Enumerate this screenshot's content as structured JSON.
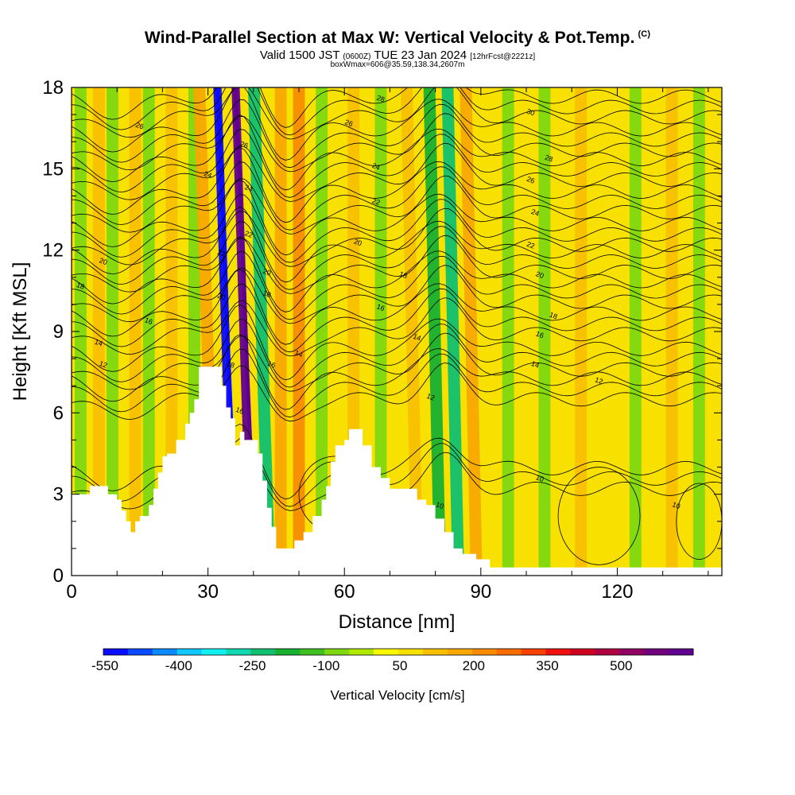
{
  "header": {
    "title": "Wind-Parallel Section at Max W: Vertical Velocity & Pot.Temp.",
    "copyright": "(C)",
    "valid_prefix": "Valid 1500 JST",
    "valid_utc": "(0600Z)",
    "valid_date": "TUE 23 Jan 2024",
    "forecast_info": "[12hrFcst@2221z]",
    "box_info": "boxWmax=606@35.59,138.34,2607m"
  },
  "chart_data": {
    "type": "heatmap",
    "xlabel": "Distance [nm]",
    "ylabel": "Height [Kft MSL]",
    "xlim": [
      0,
      143
    ],
    "ylim": [
      0,
      18
    ],
    "x_ticks": [
      0,
      30,
      60,
      90,
      120
    ],
    "y_ticks": [
      0,
      3,
      6,
      9,
      12,
      15,
      18
    ],
    "colorbar": {
      "label": "Vertical Velocity [cm/s]",
      "tick_labels": [
        "-550",
        "-400",
        "-250",
        "-100",
        "50",
        "200",
        "350",
        "500"
      ],
      "colors": [
        "#0a0aff",
        "#0a4aff",
        "#0a8aff",
        "#10c8ff",
        "#10f0f0",
        "#10d8b0",
        "#10c070",
        "#18b030",
        "#40c020",
        "#80d810",
        "#b0e800",
        "#f8f800",
        "#f8e000",
        "#f8c000",
        "#f8a800",
        "#f88c00",
        "#f86c00",
        "#f84000",
        "#f01010",
        "#d00020",
        "#b00040",
        "#900060",
        "#700080",
        "#600090"
      ]
    },
    "background_velocity": 50,
    "velocity_bands": [
      {
        "x": 2,
        "v": -80
      },
      {
        "x": 6,
        "v": 100
      },
      {
        "x": 9,
        "v": -100
      },
      {
        "x": 14,
        "v": 130
      },
      {
        "x": 17,
        "v": -80
      },
      {
        "x": 22,
        "v": 130
      },
      {
        "x": 27,
        "v": -100
      },
      {
        "x": 30,
        "v": 170
      },
      {
        "x": 34,
        "v": -520
      },
      {
        "x": 38,
        "v": 600
      },
      {
        "x": 42,
        "v": -220
      },
      {
        "x": 46,
        "v": 150
      },
      {
        "x": 50,
        "v": 200
      },
      {
        "x": 55,
        "v": -60
      },
      {
        "x": 62,
        "v": 110
      },
      {
        "x": 68,
        "v": -60
      },
      {
        "x": 75,
        "v": 120
      },
      {
        "x": 80,
        "v": -180
      },
      {
        "x": 84,
        "v": -220
      },
      {
        "x": 88,
        "v": 150
      },
      {
        "x": 96,
        "v": -90
      },
      {
        "x": 104,
        "v": -60
      },
      {
        "x": 112,
        "v": 100
      },
      {
        "x": 124,
        "v": -60
      },
      {
        "x": 132,
        "v": 120
      },
      {
        "x": 138,
        "v": -80
      }
    ],
    "terrain": [
      {
        "x": 0,
        "z": 3.0
      },
      {
        "x": 3,
        "z": 3.0
      },
      {
        "x": 4,
        "z": 3.3
      },
      {
        "x": 6,
        "z": 3.3
      },
      {
        "x": 8,
        "z": 3.0
      },
      {
        "x": 10,
        "z": 2.8
      },
      {
        "x": 11,
        "z": 2.4
      },
      {
        "x": 12,
        "z": 2.0
      },
      {
        "x": 13,
        "z": 1.6
      },
      {
        "x": 14,
        "z": 2.0
      },
      {
        "x": 15,
        "z": 2.2
      },
      {
        "x": 17,
        "z": 2.6
      },
      {
        "x": 18,
        "z": 3.2
      },
      {
        "x": 19,
        "z": 3.8
      },
      {
        "x": 20,
        "z": 4.4
      },
      {
        "x": 21,
        "z": 4.5
      },
      {
        "x": 23,
        "z": 5.0
      },
      {
        "x": 25,
        "z": 5.6
      },
      {
        "x": 26,
        "z": 6.0
      },
      {
        "x": 27,
        "z": 6.5
      },
      {
        "x": 28,
        "z": 7.7
      },
      {
        "x": 32,
        "z": 7.7
      },
      {
        "x": 33,
        "z": 7.0
      },
      {
        "x": 34,
        "z": 6.2
      },
      {
        "x": 35,
        "z": 5.8
      },
      {
        "x": 36,
        "z": 4.8
      },
      {
        "x": 37,
        "z": 5.3
      },
      {
        "x": 38,
        "z": 5.0
      },
      {
        "x": 40,
        "z": 5.0
      },
      {
        "x": 41,
        "z": 4.5
      },
      {
        "x": 42,
        "z": 3.5
      },
      {
        "x": 43,
        "z": 2.5
      },
      {
        "x": 44,
        "z": 1.8
      },
      {
        "x": 45,
        "z": 1.0
      },
      {
        "x": 48,
        "z": 1.0
      },
      {
        "x": 49,
        "z": 1.3
      },
      {
        "x": 51,
        "z": 1.6
      },
      {
        "x": 53,
        "z": 2.2
      },
      {
        "x": 55,
        "z": 2.8
      },
      {
        "x": 56,
        "z": 3.3
      },
      {
        "x": 57,
        "z": 4.2
      },
      {
        "x": 58,
        "z": 4.8
      },
      {
        "x": 60,
        "z": 5.0
      },
      {
        "x": 61,
        "z": 5.4
      },
      {
        "x": 63,
        "z": 5.4
      },
      {
        "x": 64,
        "z": 4.8
      },
      {
        "x": 66,
        "z": 4.0
      },
      {
        "x": 68,
        "z": 3.6
      },
      {
        "x": 70,
        "z": 3.2
      },
      {
        "x": 74,
        "z": 3.2
      },
      {
        "x": 76,
        "z": 2.8
      },
      {
        "x": 78,
        "z": 2.6
      },
      {
        "x": 80,
        "z": 2.1
      },
      {
        "x": 82,
        "z": 1.6
      },
      {
        "x": 84,
        "z": 1.0
      },
      {
        "x": 86,
        "z": 0.8
      },
      {
        "x": 89,
        "z": 0.6
      },
      {
        "x": 92,
        "z": 0.3
      },
      {
        "x": 143,
        "z": 0.3
      }
    ],
    "theta_contours": [
      10,
      12,
      14,
      16,
      18,
      20,
      22,
      24,
      26,
      28,
      30
    ],
    "contour_labels": [
      {
        "text": "26",
        "x": 15,
        "z": 16.6
      },
      {
        "text": "24",
        "x": 30,
        "z": 14.8
      },
      {
        "text": "20",
        "x": 7,
        "z": 11.6
      },
      {
        "text": "18",
        "x": 2,
        "z": 10.7
      },
      {
        "text": "16",
        "x": 17,
        "z": 9.4
      },
      {
        "text": "14",
        "x": 6,
        "z": 8.6
      },
      {
        "text": "12",
        "x": 7,
        "z": 7.8
      },
      {
        "text": "22",
        "x": 33,
        "z": 11.9
      },
      {
        "text": "20",
        "x": 33,
        "z": 10.3
      },
      {
        "text": "18",
        "x": 35,
        "z": 7.8
      },
      {
        "text": "16",
        "x": 37,
        "z": 6.1
      },
      {
        "text": "26",
        "x": 38,
        "z": 15.9
      },
      {
        "text": "24",
        "x": 39,
        "z": 14.3
      },
      {
        "text": "22",
        "x": 39,
        "z": 12.6
      },
      {
        "text": "20",
        "x": 43,
        "z": 11.2
      },
      {
        "text": "18",
        "x": 43,
        "z": 10.4
      },
      {
        "text": "16",
        "x": 44,
        "z": 7.8
      },
      {
        "text": "14",
        "x": 50,
        "z": 8.2
      },
      {
        "text": "26",
        "x": 61,
        "z": 16.7
      },
      {
        "text": "28",
        "x": 68,
        "z": 17.6
      },
      {
        "text": "24",
        "x": 67,
        "z": 15.1
      },
      {
        "text": "22",
        "x": 67,
        "z": 13.8
      },
      {
        "text": "20",
        "x": 63,
        "z": 12.3
      },
      {
        "text": "18",
        "x": 73,
        "z": 11.1
      },
      {
        "text": "16",
        "x": 68,
        "z": 9.9
      },
      {
        "text": "14",
        "x": 76,
        "z": 8.8
      },
      {
        "text": "12",
        "x": 79,
        "z": 6.6
      },
      {
        "text": "10",
        "x": 81,
        "z": 2.6
      },
      {
        "text": "30",
        "x": 101,
        "z": 17.1
      },
      {
        "text": "28",
        "x": 105,
        "z": 15.4
      },
      {
        "text": "26",
        "x": 101,
        "z": 14.6
      },
      {
        "text": "24",
        "x": 102,
        "z": 13.4
      },
      {
        "text": "22",
        "x": 101,
        "z": 12.2
      },
      {
        "text": "20",
        "x": 103,
        "z": 11.1
      },
      {
        "text": "18",
        "x": 106,
        "z": 9.6
      },
      {
        "text": "16",
        "x": 103,
        "z": 8.9
      },
      {
        "text": "14",
        "x": 102,
        "z": 7.8
      },
      {
        "text": "12",
        "x": 116,
        "z": 7.2
      },
      {
        "text": "10",
        "x": 103,
        "z": 3.6
      },
      {
        "text": "10",
        "x": 133,
        "z": 2.6
      }
    ]
  }
}
